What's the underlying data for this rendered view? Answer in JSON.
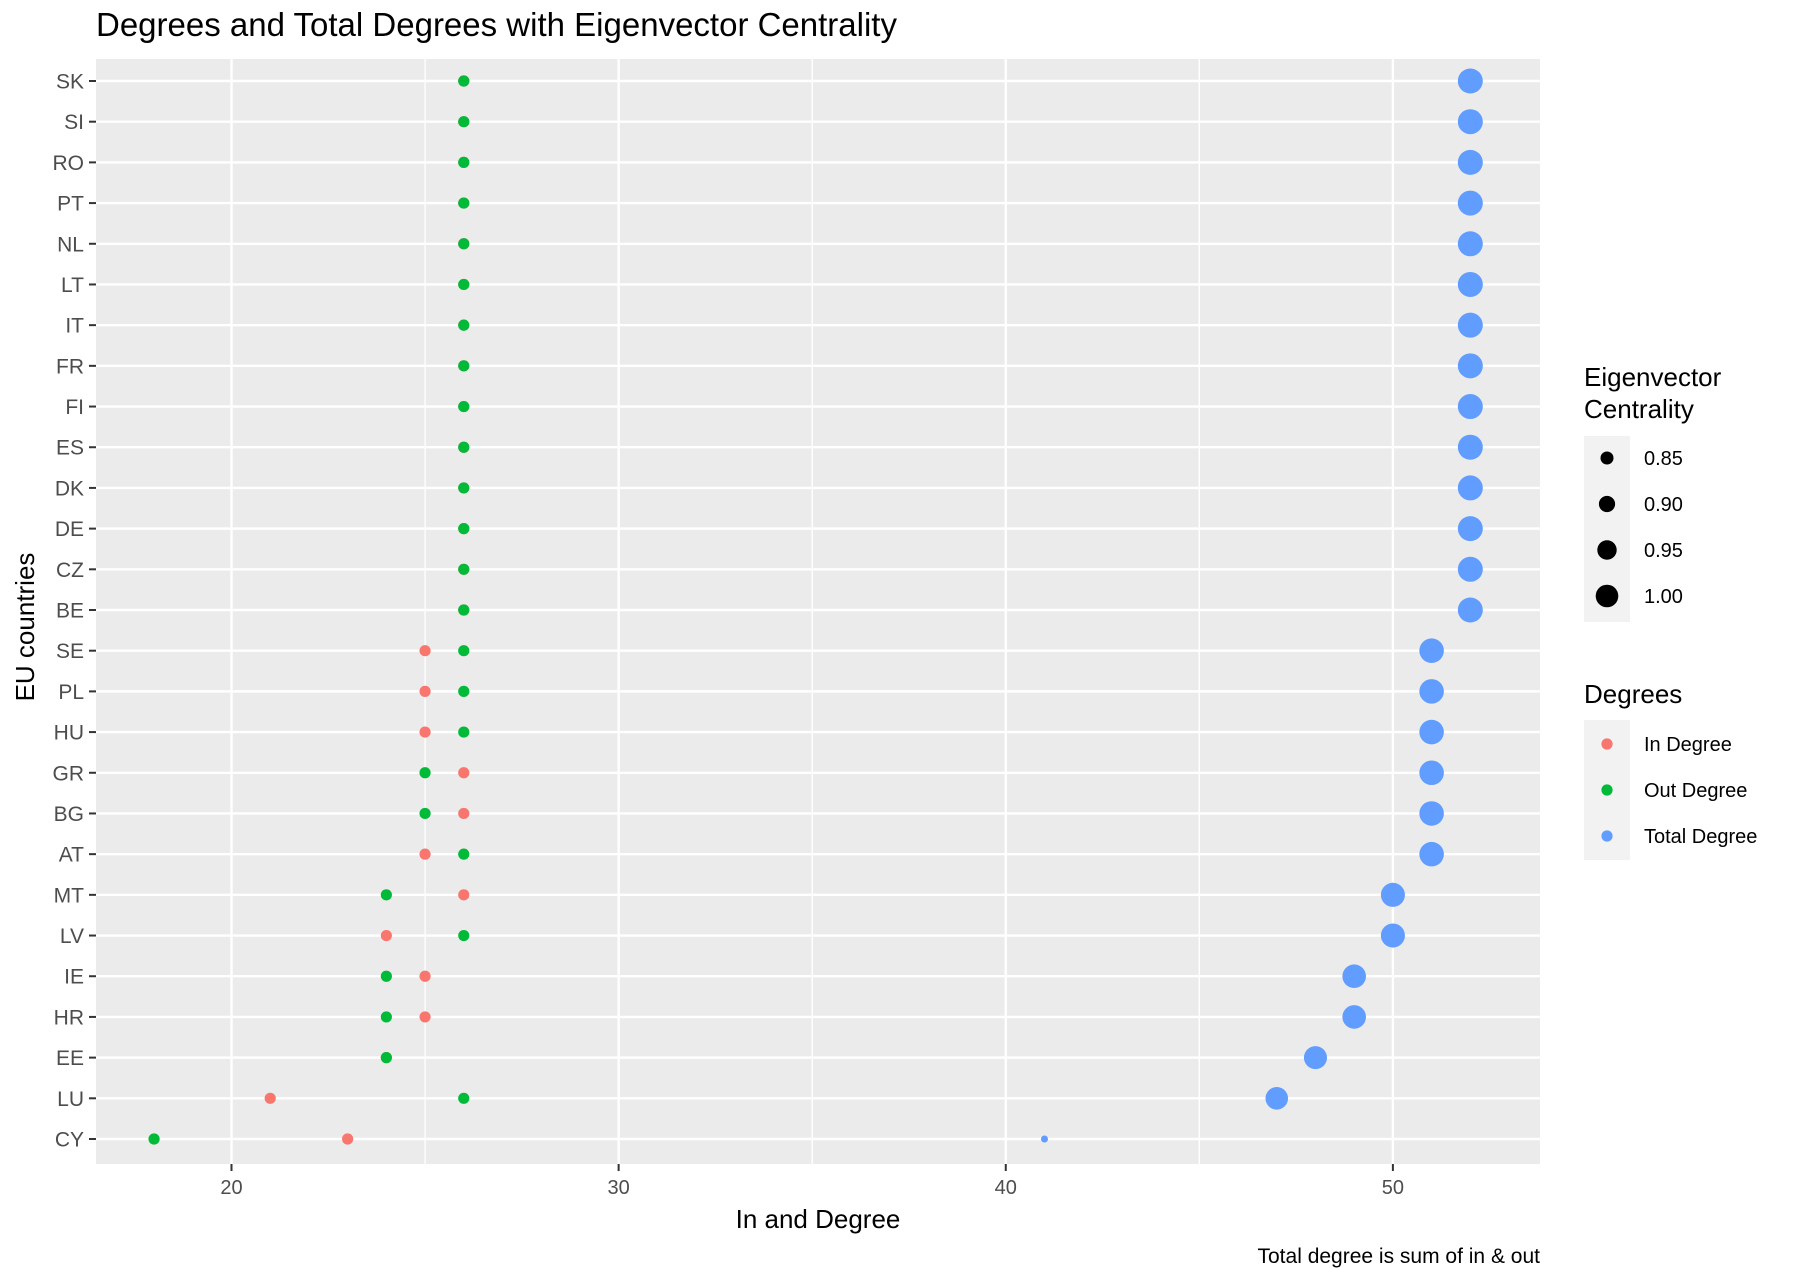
{
  "chart_data": {
    "type": "scatter",
    "title": "Degrees and Total Degrees with Eigenvector Centrality",
    "xlabel": "In and Degree",
    "ylabel": "EU countries",
    "caption": "Total degree is sum of in & out",
    "xlim": [
      16.5,
      53.8
    ],
    "x_ticks": [
      20,
      30,
      40,
      50
    ],
    "grid": true,
    "legend_position": "right",
    "categories": [
      "CY",
      "LU",
      "EE",
      "HR",
      "IE",
      "LV",
      "MT",
      "AT",
      "BG",
      "GR",
      "HU",
      "PL",
      "SE",
      "BE",
      "CZ",
      "DE",
      "DK",
      "ES",
      "FI",
      "FR",
      "IT",
      "LT",
      "NL",
      "PT",
      "RO",
      "SI",
      "SK"
    ],
    "series": [
      {
        "name": "In Degree",
        "color": "#F8766D",
        "values": [
          23,
          21,
          24,
          25,
          25,
          24,
          26,
          25,
          26,
          26,
          25,
          25,
          25,
          26,
          26,
          26,
          26,
          26,
          26,
          26,
          26,
          26,
          26,
          26,
          26,
          26,
          26
        ]
      },
      {
        "name": "Out Degree",
        "color": "#00BA38",
        "values": [
          18,
          26,
          24,
          24,
          24,
          26,
          24,
          26,
          25,
          25,
          26,
          26,
          26,
          26,
          26,
          26,
          26,
          26,
          26,
          26,
          26,
          26,
          26,
          26,
          26,
          26,
          26
        ]
      },
      {
        "name": "Total Degree",
        "color": "#619CFF",
        "values": [
          41,
          47,
          48,
          49,
          49,
          50,
          50,
          51,
          51,
          51,
          51,
          51,
          51,
          52,
          52,
          52,
          52,
          52,
          52,
          52,
          52,
          52,
          52,
          52,
          52,
          52,
          52
        ]
      }
    ],
    "eigenvector_centrality": [
      0.8,
      0.95,
      0.96,
      0.97,
      0.97,
      0.98,
      0.98,
      0.99,
      0.99,
      0.99,
      0.99,
      0.99,
      0.99,
      1.0,
      1.0,
      1.0,
      1.0,
      1.0,
      1.0,
      1.0,
      1.0,
      1.0,
      1.0,
      1.0,
      1.0,
      1.0,
      1.0
    ],
    "size_legend": {
      "title_line1": "Eigenvector",
      "title_line2": "Centrality",
      "items": [
        {
          "label": "0.85",
          "value": 0.85
        },
        {
          "label": "0.90",
          "value": 0.9
        },
        {
          "label": "0.95",
          "value": 0.95
        },
        {
          "label": "1.00",
          "value": 1.0
        }
      ]
    },
    "color_legend": {
      "title": "Degrees",
      "items": [
        {
          "label": "In Degree",
          "color": "#F8766D"
        },
        {
          "label": "Out Degree",
          "color": "#00BA38"
        },
        {
          "label": "Total Degree",
          "color": "#619CFF"
        }
      ]
    }
  }
}
